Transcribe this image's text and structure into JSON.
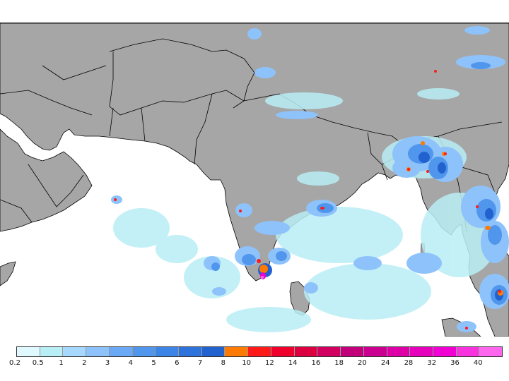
{
  "legend": {
    "labels": [
      "0.2",
      "0.5",
      "1",
      "2",
      "3",
      "4",
      "5",
      "6",
      "7",
      "8",
      "10",
      "12",
      "14",
      "16",
      "18",
      "20",
      "24",
      "28",
      "32",
      "36",
      "40"
    ],
    "colors": [
      "#dff9ff",
      "#b8eef5",
      "#a7d8ff",
      "#8ec2fb",
      "#6aaaf5",
      "#4f96ec",
      "#3c84e6",
      "#2e72db",
      "#2262cf",
      "#ff7a00",
      "#ff1a1a",
      "#f0002c",
      "#dd0040",
      "#d10060",
      "#c2007a",
      "#cc0090",
      "#dd00a6",
      "#e600bb",
      "#f000d2",
      "#f733dd",
      "#ff66ee"
    ]
  },
  "map": {
    "land_color": "#a6a6a6",
    "ocean_color": "#ffffff",
    "border_color": "#000000"
  }
}
